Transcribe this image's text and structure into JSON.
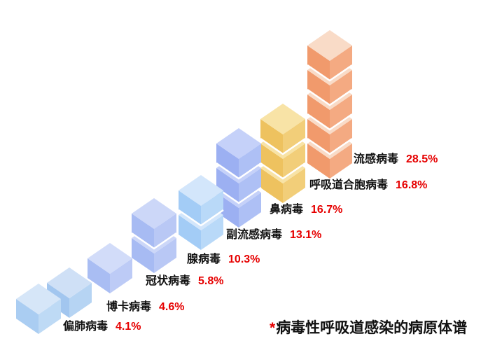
{
  "chart_data": {
    "type": "bar",
    "variant": "isometric-cube-stack-staircase",
    "title": "",
    "xlabel": "",
    "ylabel": "",
    "axes": "none",
    "grid": false,
    "legend": "none",
    "unit": "%",
    "categories": [
      "偏肺病毒",
      "博卡病毒",
      "冠状病毒",
      "腺病毒",
      "副流感病毒",
      "鼻病毒",
      "呼吸道合胞病毒",
      "流感病毒"
    ],
    "values": [
      4.1,
      4.6,
      5.8,
      10.3,
      13.1,
      16.7,
      16.8,
      28.5
    ],
    "value_labels": [
      "4.1%",
      "4.6%",
      "5.8%",
      "10.3%",
      "13.1%",
      "16.7%",
      "16.8%",
      "28.5%"
    ],
    "cubes_per_stack": [
      1,
      1,
      1,
      2,
      2,
      3,
      3,
      5
    ],
    "approx_percent_per_cube": 5.7,
    "footnote": "*病毒性呼吸道感染的病原体谱"
  },
  "stacks": [
    {
      "name": "偏肺病毒",
      "percent_label": "4.1%",
      "value": 4.1,
      "cubes": 1,
      "colors": {
        "top": "#d6e6f8",
        "left": "#aacdf2",
        "right": "#bedaf5"
      }
    },
    {
      "name": "博卡病毒",
      "percent_label": "4.6%",
      "value": 4.6,
      "cubes": 1,
      "colors": {
        "top": "#cfe0f6",
        "left": "#a2c6ef",
        "right": "#b6d4f3"
      }
    },
    {
      "name": "冠状病毒",
      "percent_label": "5.8%",
      "value": 5.8,
      "cubes": 1,
      "colors": {
        "top": "#d2dcf9",
        "left": "#a9bdf3",
        "right": "#bdcbf6"
      }
    },
    {
      "name": "腺病毒",
      "percent_label": "10.3%",
      "value": 10.3,
      "cubes": 2,
      "colors": {
        "top": "#ccd7f8",
        "left": "#a7bbf3",
        "right": "#b9c8f5"
      }
    },
    {
      "name": "副流感病毒",
      "percent_label": "13.1%",
      "value": 13.1,
      "cubes": 2,
      "colors": {
        "top": "#d3e6fb",
        "left": "#a3ccf6",
        "right": "#b9d9f8"
      }
    },
    {
      "name": "鼻病毒",
      "percent_label": "16.7%",
      "value": 16.7,
      "cubes": 3,
      "colors": {
        "top": "#c5d1f9",
        "left": "#9cb0f2",
        "right": "#aec0f5"
      }
    },
    {
      "name": "呼吸道合胞病毒",
      "percent_label": "16.8%",
      "value": 16.8,
      "cubes": 3,
      "colors": {
        "top": "#f8e3a6",
        "left": "#eec25f",
        "right": "#f2ce79"
      }
    },
    {
      "name": "流感病毒",
      "percent_label": "28.5%",
      "value": 28.5,
      "cubes": 5,
      "colors": {
        "top": "#f9dbc7",
        "left": "#f19a6c",
        "right": "#f4aa82"
      }
    }
  ],
  "footnote": {
    "marker": "*",
    "text": "病毒性呼吸道感染的病原体谱"
  },
  "colors": {
    "background": "#ffffff",
    "virus_name_text": "#111111",
    "percent_text": "#e60000",
    "footnote_marker": "#e60000",
    "footnote_text": "#111111",
    "cube_seam": "#ffffff"
  }
}
